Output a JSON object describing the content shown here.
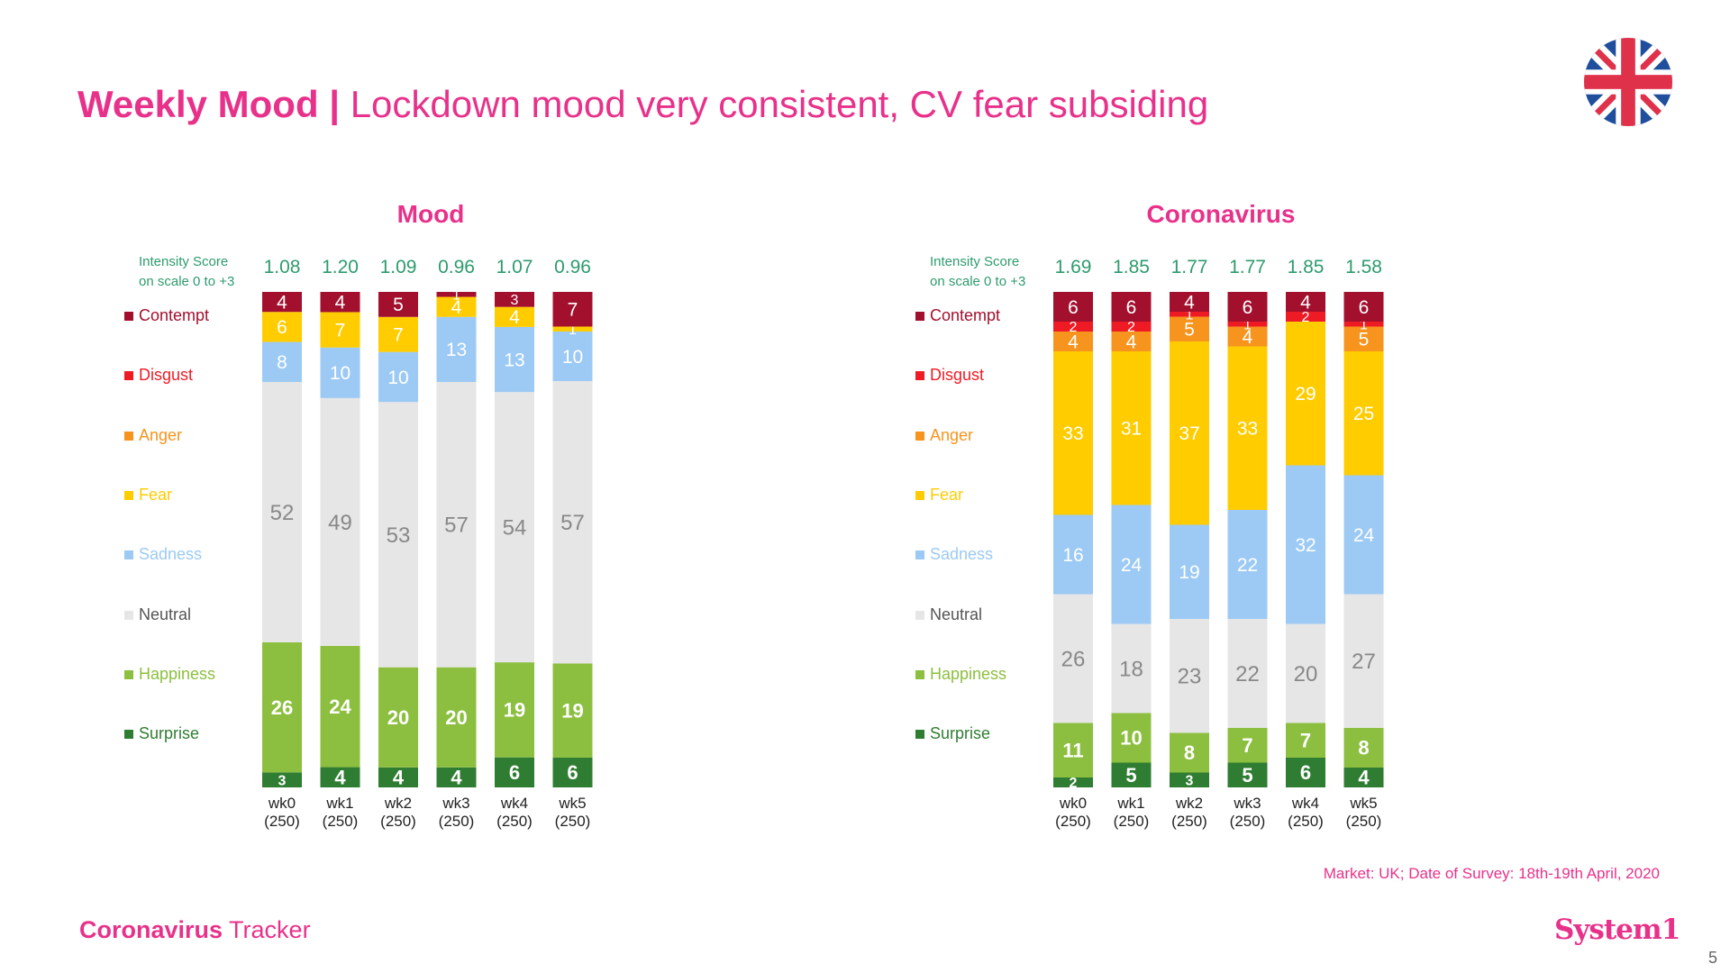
{
  "header": {
    "title_bold": "Weekly Mood |",
    "title_rest": "Lockdown mood very consistent, CV fear subsiding"
  },
  "colors": {
    "brand": "#e8318a",
    "score": "#2e9b6e",
    "Contempt": "#a3102e",
    "Disgust": "#ee1b24",
    "Anger": "#f7941d",
    "Fear": "#ffcc00",
    "Sadness": "#9ccaf4",
    "Neutral": "#e6e6e6",
    "Happiness": "#8cbf3f",
    "Surprise": "#2f7d32"
  },
  "legend": {
    "intensity_label_1": "Intensity Score",
    "intensity_label_2": "on scale 0 to +3",
    "items": [
      "Contempt",
      "Disgust",
      "Anger",
      "Fear",
      "Sadness",
      "Neutral",
      "Happiness",
      "Surprise"
    ]
  },
  "chart_data": [
    {
      "type": "bar",
      "stacked": true,
      "title": "Mood",
      "categories": [
        "wk0",
        "wk1",
        "wk2",
        "wk3",
        "wk4",
        "wk5"
      ],
      "sample_sizes": [
        "(250)",
        "(250)",
        "(250)",
        "(250)",
        "(250)",
        "(250)"
      ],
      "intensity_scores": [
        "1.08",
        "1.20",
        "1.09",
        "0.96",
        "1.07",
        "0.96"
      ],
      "ylim": [
        0,
        100
      ],
      "series": [
        {
          "name": "Surprise",
          "values": [
            3,
            4,
            4,
            4,
            6,
            6
          ]
        },
        {
          "name": "Happiness",
          "values": [
            26,
            24,
            20,
            20,
            19,
            19
          ]
        },
        {
          "name": "Neutral",
          "values": [
            52,
            49,
            53,
            57,
            54,
            57
          ]
        },
        {
          "name": "Sadness",
          "values": [
            8,
            10,
            10,
            13,
            13,
            10
          ]
        },
        {
          "name": "Fear",
          "values": [
            6,
            7,
            7,
            4,
            4,
            1
          ]
        },
        {
          "name": "Anger",
          "values": [
            0,
            0,
            0,
            0,
            0,
            0
          ]
        },
        {
          "name": "Disgust",
          "values": [
            0,
            0,
            0,
            0,
            0,
            0
          ]
        },
        {
          "name": "Contempt",
          "values": [
            4,
            4,
            5,
            1,
            3,
            7
          ]
        }
      ]
    },
    {
      "type": "bar",
      "stacked": true,
      "title": "Coronavirus",
      "categories": [
        "wk0",
        "wk1",
        "wk2",
        "wk3",
        "wk4",
        "wk5"
      ],
      "sample_sizes": [
        "(250)",
        "(250)",
        "(250)",
        "(250)",
        "(250)",
        "(250)"
      ],
      "intensity_scores": [
        "1.69",
        "1.85",
        "1.77",
        "1.77",
        "1.85",
        "1.58"
      ],
      "ylim": [
        0,
        100
      ],
      "series": [
        {
          "name": "Surprise",
          "values": [
            2,
            5,
            3,
            5,
            6,
            4
          ]
        },
        {
          "name": "Happiness",
          "values": [
            11,
            10,
            8,
            7,
            7,
            8
          ]
        },
        {
          "name": "Neutral",
          "values": [
            26,
            18,
            23,
            22,
            20,
            27
          ]
        },
        {
          "name": "Sadness",
          "values": [
            16,
            24,
            19,
            22,
            32,
            24
          ]
        },
        {
          "name": "Fear",
          "values": [
            33,
            31,
            37,
            33,
            29,
            25
          ]
        },
        {
          "name": "Anger",
          "values": [
            4,
            4,
            5,
            4,
            0,
            5
          ]
        },
        {
          "name": "Disgust",
          "values": [
            2,
            2,
            1,
            1,
            2,
            1
          ]
        },
        {
          "name": "Contempt",
          "values": [
            6,
            6,
            4,
            6,
            4,
            6
          ]
        }
      ]
    }
  ],
  "footer": {
    "market_note": "Market: UK; Date of Survey: 18th-19th April, 2020",
    "brand_bold": "Coronavirus",
    "brand_rest": " Tracker",
    "system1": "System1",
    "page_number": "5"
  }
}
